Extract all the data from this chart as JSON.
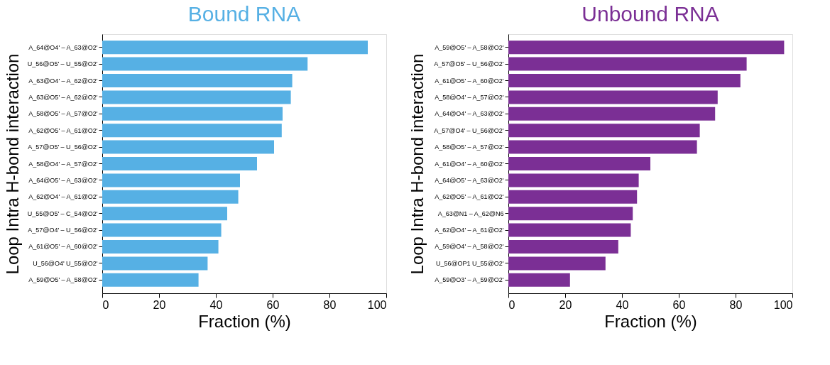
{
  "chart_data": [
    {
      "type": "bar",
      "orientation": "horizontal",
      "title": "Bound RNA",
      "xlabel": "Fraction (%)",
      "ylabel": "Loop Intra H-bond interaction",
      "categories": [
        "A_64@O4' – A_63@O2'",
        "U_56@O5' – U_55@O2'",
        "A_63@O4' – A_62@O2'",
        "A_63@O5' – A_62@O2'",
        "A_58@O5' – A_57@O2'",
        "A_62@O5' – A_61@O2'",
        "A_57@O5' – U_56@O2'",
        "A_58@O4' – A_57@O2'",
        "A_64@O5' – A_63@O2'",
        "A_62@O4' – A_61@O2'",
        "U_55@O5' – C_54@O2'",
        "A_57@O4' – U_56@O2'",
        "A_61@O5' – A_60@O2'",
        "U_56@O4'   U_55@O2'",
        "A_59@O5' – A_58@O2'"
      ],
      "series": [
        {
          "color": "#56b0e4",
          "values": [
            93.5,
            72.3,
            66.9,
            66.4,
            63.5,
            63.2,
            60.5,
            54.5,
            48.5,
            47.9,
            44.0,
            41.9,
            40.9,
            37.1,
            33.9
          ]
        }
      ],
      "xlim": [
        0,
        100
      ],
      "xticks": [
        0,
        20,
        40,
        60,
        80,
        100
      ],
      "grid": false
    },
    {
      "type": "bar",
      "orientation": "horizontal",
      "title": "Unbound RNA",
      "xlabel": "Fraction (%)",
      "ylabel": "Loop Intra H-bond interaction",
      "categories": [
        "A_59@O5' – A_58@O2'",
        "A_57@O5' – U_56@O2'",
        "A_61@O5' – A_60@O2'",
        "A_58@O4' – A_57@O2'",
        "A_64@O4' – A_63@O2'",
        "A_57@O4' – U_56@O2'",
        "A_58@O5' – A_57@O2'",
        "A_61@O4' – A_60@O2'",
        "A_64@O5' – A_63@O2'",
        "A_62@O5' – A_61@O2'",
        "A_63@N1 – A_62@N6",
        "A_62@O4' – A_61@O2'",
        "A_59@O4' – A_58@O2'",
        "U_56@OP1   U_55@O2'",
        "A_59@O3' – A_59@O2'"
      ],
      "series": [
        {
          "color": "#7b2f95",
          "values": [
            97.1,
            83.9,
            81.7,
            73.7,
            72.8,
            67.4,
            66.4,
            50.0,
            45.9,
            45.3,
            43.8,
            43.1,
            38.7,
            34.2,
            21.7
          ]
        }
      ],
      "xlim": [
        0,
        100
      ],
      "xticks": [
        0,
        20,
        40,
        60,
        80,
        100
      ],
      "grid": false
    }
  ]
}
